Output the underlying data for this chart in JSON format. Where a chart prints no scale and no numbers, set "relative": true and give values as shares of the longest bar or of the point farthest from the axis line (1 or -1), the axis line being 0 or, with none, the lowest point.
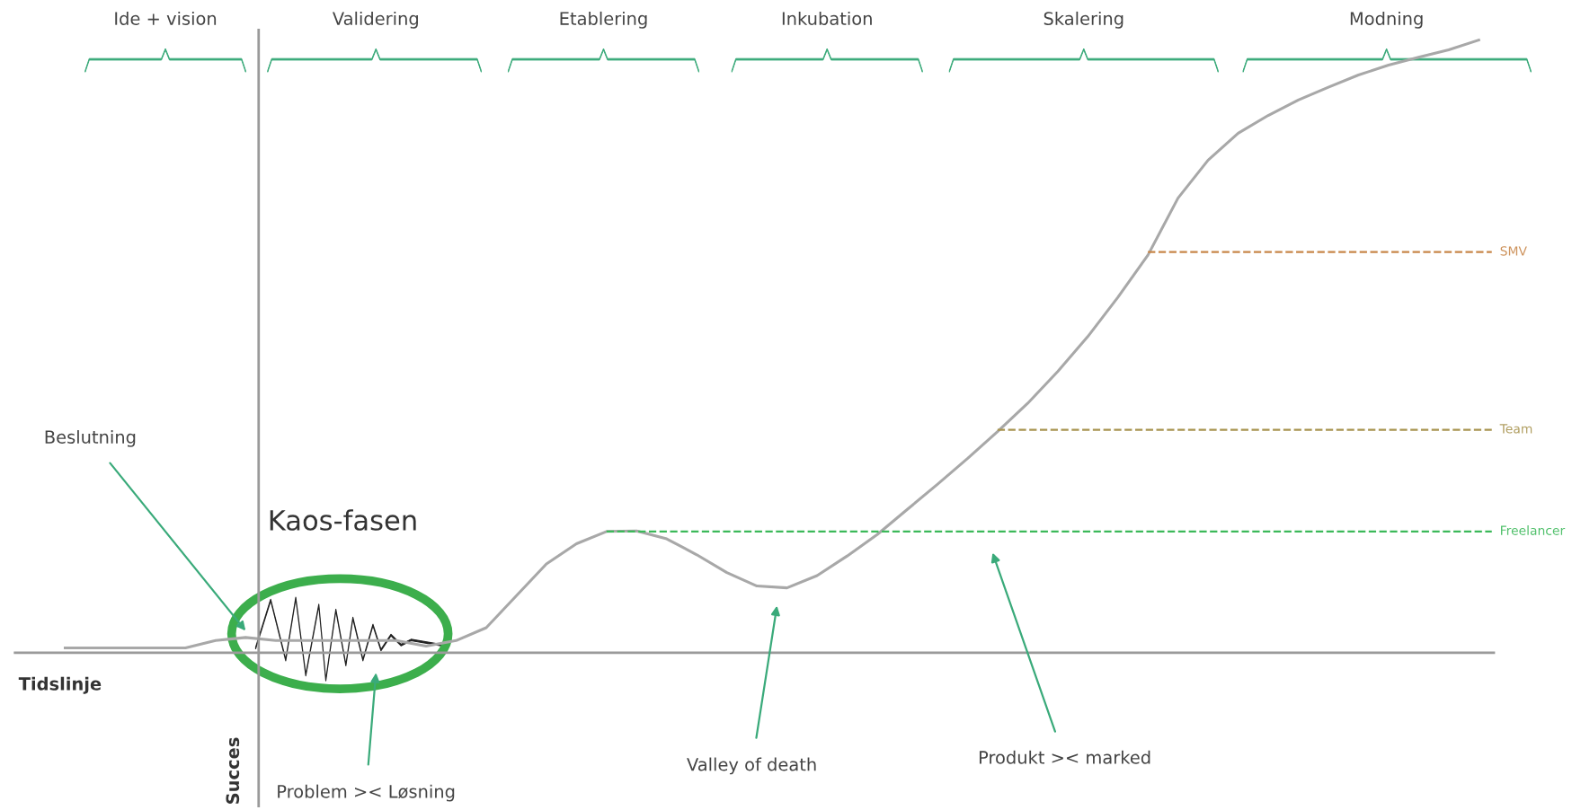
{
  "chart_data": {
    "type": "line",
    "relative": true,
    "xlabel": "Tidslinje",
    "ylabel": "Succes",
    "categories": [
      null,
      null,
      null,
      null,
      null,
      null,
      null,
      null,
      null,
      null,
      null,
      null,
      null,
      null,
      null,
      null,
      null,
      null,
      null,
      null,
      null,
      null,
      null,
      null,
      null,
      null,
      null,
      null,
      null,
      null,
      null,
      null,
      null,
      null,
      null,
      null,
      null,
      null,
      null,
      null,
      null,
      null,
      null,
      null,
      null,
      null,
      null,
      null
    ],
    "series": [
      {
        "color": "#a8a8a8",
        "values": [
          0.008,
          0.008,
          0.008,
          0.008,
          0.008,
          0.02,
          0.025,
          0.02,
          0.02,
          0.02,
          0.02,
          0.02,
          0.011,
          0.02,
          0.041,
          0.093,
          0.145,
          0.178,
          0.198,
          0.199,
          0.186,
          0.16,
          0.131,
          0.109,
          0.106,
          0.126,
          0.158,
          0.193,
          0.234,
          0.275,
          0.317,
          0.361,
          0.407,
          0.459,
          0.516,
          0.58,
          0.649,
          0.742,
          0.804,
          0.848,
          0.877,
          0.902,
          0.923,
          0.943,
          0.959,
          0.972,
          0.984,
          1.0
        ]
      }
    ],
    "ref_lines": [
      {
        "axis": "y",
        "value": 0.654,
        "label": "SMV",
        "color": "#c8874a",
        "line_style": "dashed"
      },
      {
        "axis": "y",
        "value": 0.364,
        "label": "Team",
        "color": "#a89450",
        "line_style": "dashed"
      },
      {
        "axis": "y",
        "value": 0.198,
        "label": "Freelancer",
        "color": "#3cb95a",
        "line_style": "dashed"
      }
    ],
    "annotations": [
      "Ide + vision",
      "Validering",
      "Etablering",
      "Inkubation",
      "Skalering",
      "Modning",
      "Beslutning",
      "Kaos-fasen",
      "Problem >< Løsning",
      "Valley of death",
      "Produkt >< marked"
    ],
    "marker": "none",
    "line_style": "solid"
  }
}
